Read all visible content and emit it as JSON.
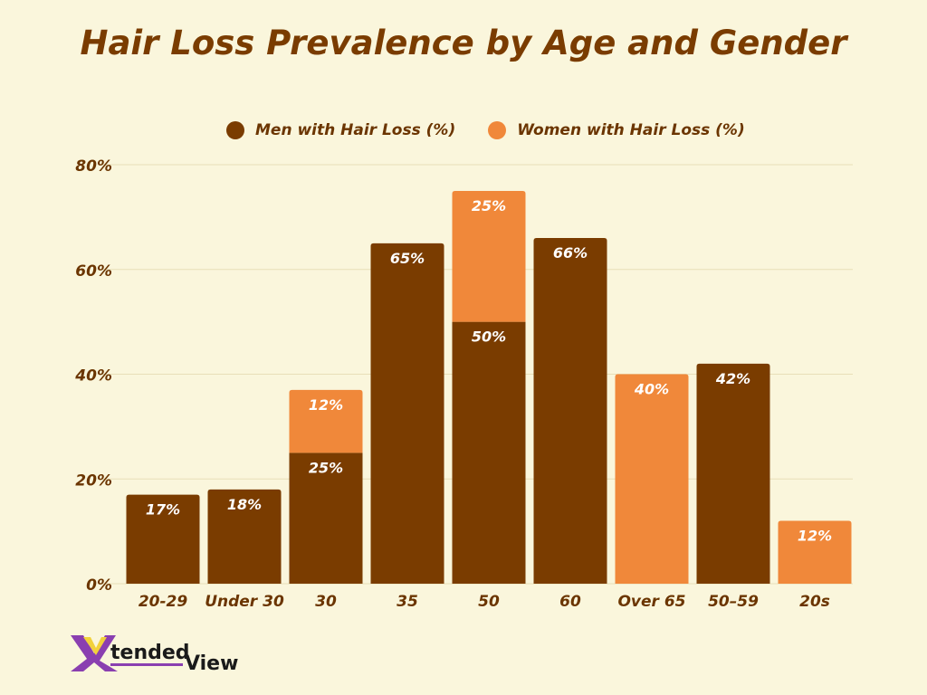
{
  "title": "Hair Loss Prevalence by Age and Gender",
  "logo_text": "XtendedView",
  "chart_data": {
    "type": "bar",
    "stacked": true,
    "title": "Hair Loss Prevalence by Age and Gender",
    "categories": [
      "20-29",
      "Under 30",
      "30",
      "35",
      "50",
      "60",
      "Over 65",
      "50–59",
      "20s"
    ],
    "series": [
      {
        "name": "Men with Hair Loss (%)",
        "color": "#7a3c00",
        "values": [
          17,
          18,
          25,
          65,
          50,
          66,
          0,
          42,
          0
        ]
      },
      {
        "name": "Women with Hair Loss (%)",
        "color": "#f0883a",
        "values": [
          0,
          0,
          12,
          0,
          25,
          0,
          40,
          0,
          12
        ]
      }
    ],
    "yticks": [
      "0%",
      "20%",
      "40%",
      "60%",
      "80%"
    ],
    "ylim": [
      0,
      80
    ],
    "grid": true,
    "legend": "top-center",
    "xlabel": "",
    "ylabel": ""
  }
}
